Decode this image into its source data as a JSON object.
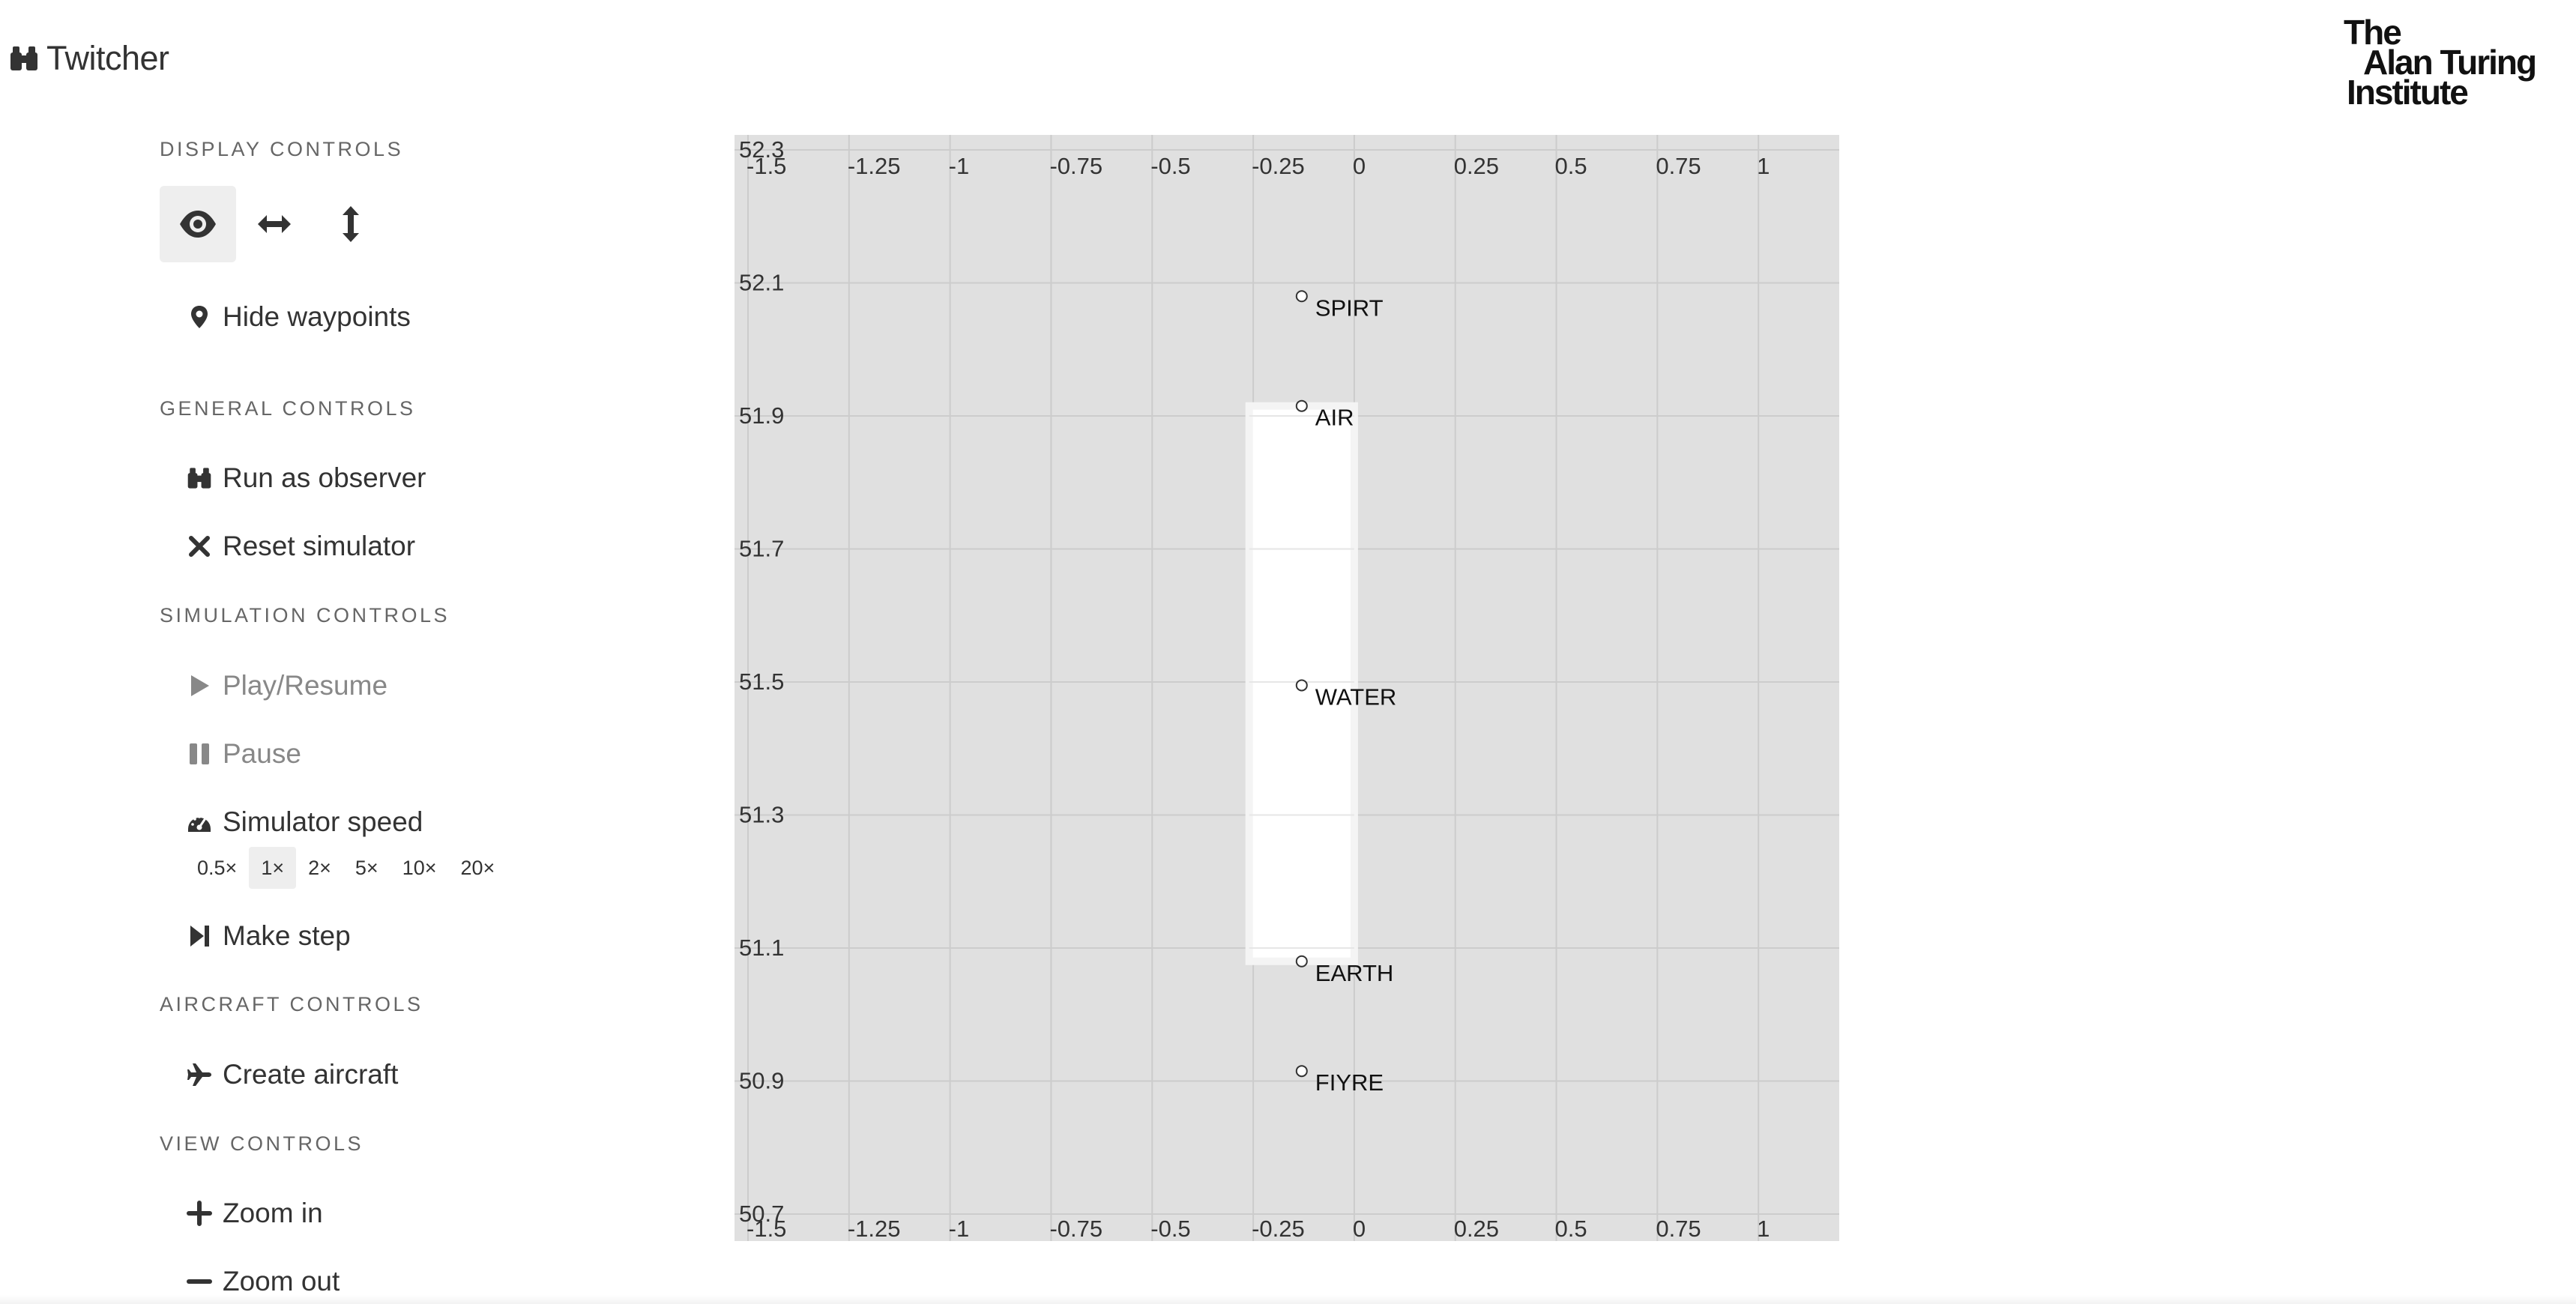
{
  "app": {
    "title": "Twitcher"
  },
  "logo": {
    "line1": "The",
    "line2": "Alan Turing",
    "line3": "Institute"
  },
  "sidebar": {
    "display": {
      "title": "DISPLAY CONTROLS",
      "view_buttons": [
        "eye-icon",
        "arrows-horizontal-icon",
        "arrows-vertical-icon"
      ],
      "hide_waypoints": "Hide waypoints"
    },
    "general": {
      "title": "GENERAL CONTROLS",
      "run_observer": "Run as observer",
      "reset": "Reset simulator"
    },
    "simulation": {
      "title": "SIMULATION CONTROLS",
      "play": "Play/Resume",
      "pause": "Pause",
      "speed": "Simulator speed",
      "speeds": [
        "0.5×",
        "1×",
        "2×",
        "5×",
        "10×",
        "20×"
      ],
      "active_speed": "1×",
      "step": "Make step"
    },
    "aircraft": {
      "title": "AIRCRAFT CONTROLS",
      "create": "Create aircraft"
    },
    "view": {
      "title": "VIEW CONTROLS",
      "zoom_in": "Zoom in",
      "zoom_out": "Zoom out"
    }
  },
  "chart_data": {
    "type": "scatter",
    "xlim": [
      -1.5,
      1.2
    ],
    "ylim": [
      50.7,
      52.3
    ],
    "x_ticks": [
      -1.5,
      -1.25,
      -1,
      -0.75,
      -0.5,
      -0.25,
      0,
      0.25,
      0.5,
      0.75,
      1
    ],
    "x_tick_labels": [
      "-1.5",
      "-1.25",
      "-1",
      "-0.75",
      "-0.5",
      "-0.25",
      "0",
      "0.25",
      "0.5",
      "0.75",
      "1"
    ],
    "y_ticks": [
      52.3,
      52.1,
      51.9,
      51.7,
      51.5,
      51.3,
      51.1,
      50.9,
      50.7
    ],
    "y_tick_labels": [
      "52.3",
      "52.1",
      "51.9",
      "51.7",
      "51.5",
      "51.3",
      "51.1",
      "50.9",
      "50.7"
    ],
    "grid": true,
    "sector": {
      "x0": -0.26,
      "x1": 0.0,
      "y0": 51.08,
      "y1": 51.915
    },
    "waypoints": [
      {
        "name": "SPIRT",
        "x": -0.13,
        "y": 52.08
      },
      {
        "name": "AIR",
        "x": -0.13,
        "y": 51.915
      },
      {
        "name": "WATER",
        "x": -0.13,
        "y": 51.495
      },
      {
        "name": "EARTH",
        "x": -0.13,
        "y": 51.08
      },
      {
        "name": "FIYRE",
        "x": -0.13,
        "y": 50.915
      }
    ],
    "colors": {
      "background": "#e0e0e0",
      "grid": "#cccccc",
      "sector": "#ffffff",
      "text": "#333333"
    }
  }
}
